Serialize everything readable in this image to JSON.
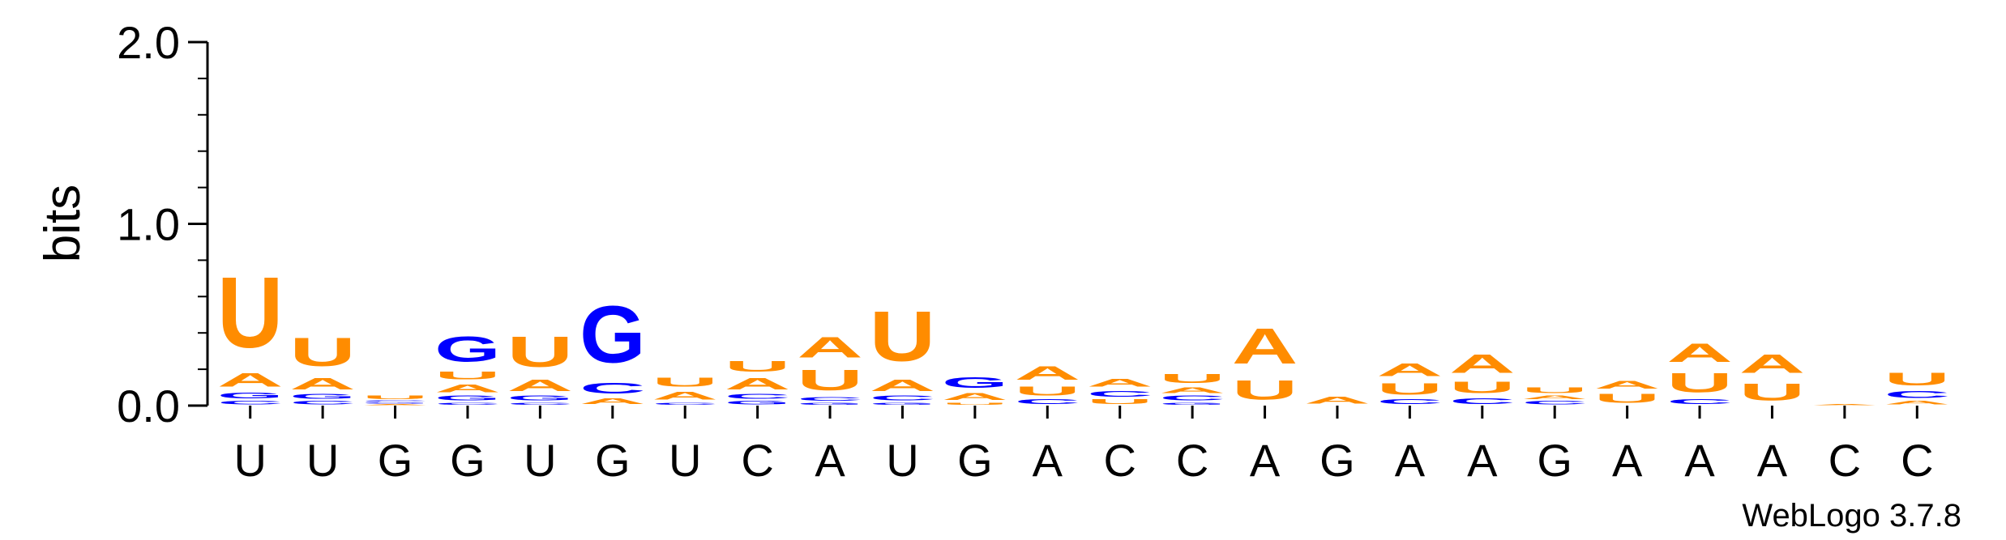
{
  "chart_data": {
    "type": "sequence-logo",
    "ylabel": "bits",
    "ylim": [
      0,
      2.0
    ],
    "yticks": [
      {
        "value": 0.0,
        "label": "0.0"
      },
      {
        "value": 1.0,
        "label": "1.0"
      },
      {
        "value": 2.0,
        "label": "2.0"
      }
    ],
    "categories": [
      "U",
      "U",
      "G",
      "G",
      "U",
      "G",
      "U",
      "C",
      "A",
      "U",
      "G",
      "A",
      "C",
      "C",
      "A",
      "G",
      "A",
      "A",
      "G",
      "A",
      "A",
      "A",
      "C",
      "C"
    ],
    "colors": {
      "A": "#ff8c00",
      "U": "#ff8c00",
      "G": "#0000ff",
      "C": "#0000ff"
    },
    "stacks": [
      [
        [
          "C",
          0.03
        ],
        [
          "G",
          0.05
        ],
        [
          "A",
          0.12
        ],
        [
          "U",
          0.62
        ]
      ],
      [
        [
          "C",
          0.03
        ],
        [
          "G",
          0.04
        ],
        [
          "A",
          0.1
        ],
        [
          "U",
          0.25
        ]
      ],
      [
        [
          "A",
          0.01
        ],
        [
          "G",
          0.01
        ],
        [
          "C",
          0.01
        ],
        [
          "U",
          0.03
        ]
      ],
      [
        [
          "C",
          0.02
        ],
        [
          "G",
          0.04
        ],
        [
          "A",
          0.07
        ],
        [
          "U",
          0.07
        ],
        [
          "G",
          0.22
        ]
      ],
      [
        [
          "C",
          0.02
        ],
        [
          "G",
          0.04
        ],
        [
          "A",
          0.1
        ],
        [
          "U",
          0.27
        ]
      ],
      [
        [
          "A",
          0.05
        ],
        [
          "C",
          0.09
        ],
        [
          "G",
          0.5
        ]
      ],
      [
        [
          "C",
          0.02
        ],
        [
          "A",
          0.07
        ],
        [
          "U",
          0.08
        ]
      ],
      [
        [
          "G",
          0.03
        ],
        [
          "C",
          0.04
        ],
        [
          "A",
          0.1
        ],
        [
          "U",
          0.09
        ]
      ],
      [
        [
          "G",
          0.02
        ],
        [
          "C",
          0.03
        ],
        [
          "U",
          0.18
        ],
        [
          "A",
          0.18
        ]
      ],
      [
        [
          "G",
          0.02
        ],
        [
          "C",
          0.04
        ],
        [
          "A",
          0.1
        ],
        [
          "U",
          0.44
        ]
      ],
      [
        [
          "U",
          0.02
        ],
        [
          "A",
          0.06
        ],
        [
          "G",
          0.09
        ]
      ],
      [
        [
          "C",
          0.04
        ],
        [
          "U",
          0.08
        ],
        [
          "A",
          0.12
        ]
      ],
      [
        [
          "U",
          0.04
        ],
        [
          "C",
          0.05
        ],
        [
          "A",
          0.07
        ]
      ],
      [
        [
          "G",
          0.02
        ],
        [
          "C",
          0.04
        ],
        [
          "A",
          0.05
        ],
        [
          "U",
          0.08
        ]
      ],
      [
        [
          "U",
          0.17
        ],
        [
          "A",
          0.31
        ]
      ],
      [
        [
          "A",
          0.06
        ]
      ],
      [
        [
          "C",
          0.04
        ],
        [
          "U",
          0.1
        ],
        [
          "A",
          0.11
        ]
      ],
      [
        [
          "C",
          0.05
        ],
        [
          "U",
          0.1
        ],
        [
          "A",
          0.16
        ]
      ],
      [
        [
          "C",
          0.03
        ],
        [
          "A",
          0.03
        ],
        [
          "U",
          0.05
        ]
      ],
      [
        [
          "U",
          0.08
        ],
        [
          "A",
          0.07
        ]
      ],
      [
        [
          "C",
          0.04
        ],
        [
          "U",
          0.17
        ],
        [
          "A",
          0.16
        ]
      ],
      [
        [
          "U",
          0.15
        ],
        [
          "A",
          0.16
        ]
      ],
      [
        [
          "A",
          0.01
        ]
      ],
      [
        [
          "A",
          0.03
        ],
        [
          "C",
          0.06
        ],
        [
          "U",
          0.11
        ]
      ]
    ]
  },
  "footer": {
    "credit": "WebLogo 3.7.8"
  }
}
